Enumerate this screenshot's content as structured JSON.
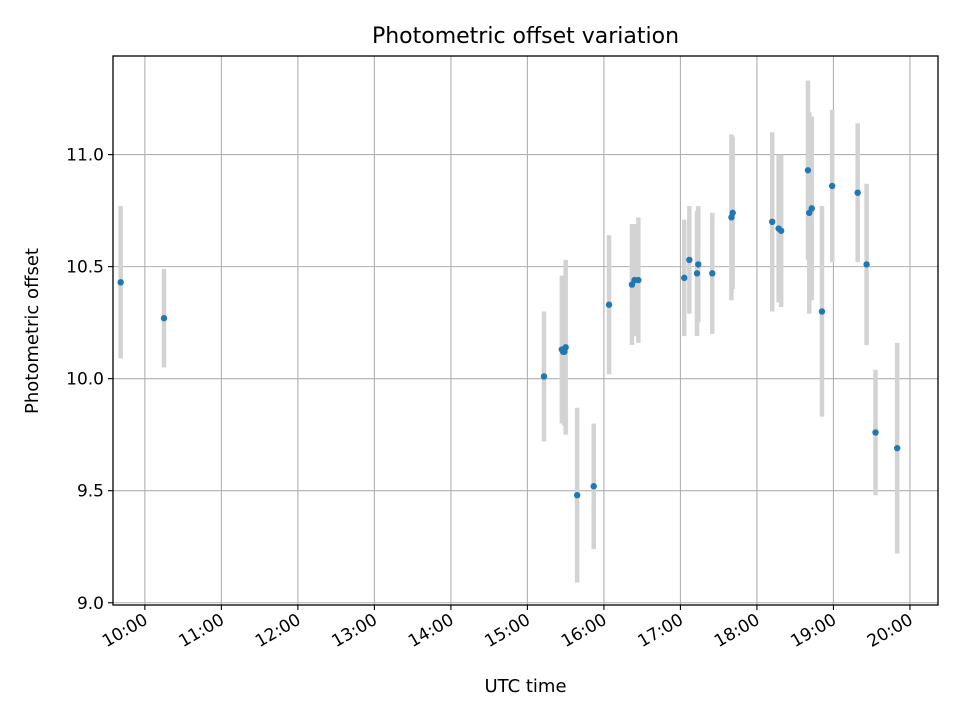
{
  "chart_data": {
    "type": "scatter",
    "title": "Photometric offset variation",
    "xlabel": "UTC time",
    "ylabel": "Photometric offset",
    "xlim": [
      "09:35",
      "20:22"
    ],
    "ylim": [
      8.99,
      11.44
    ],
    "x_ticks": [
      "10:00",
      "11:00",
      "12:00",
      "13:00",
      "14:00",
      "15:00",
      "16:00",
      "17:00",
      "18:00",
      "19:00",
      "20:00"
    ],
    "y_ticks": [
      "9.0",
      "9.5",
      "10.0",
      "10.5",
      "11.0"
    ],
    "y_tick_values": [
      9.0,
      9.5,
      10.0,
      10.5,
      11.0
    ],
    "grid": true,
    "colors": {
      "marker": "#1f77b4",
      "errorbar": "#d3d3d3",
      "grid": "#b0b0b0"
    },
    "points": [
      {
        "x": "09:41",
        "y": 10.43,
        "err": 0.34
      },
      {
        "x": "10:15",
        "y": 10.27,
        "err": 0.22
      },
      {
        "x": "15:13",
        "y": 10.01,
        "err": 0.29
      },
      {
        "x": "15:27",
        "y": 10.13,
        "err": 0.33
      },
      {
        "x": "15:28",
        "y": 10.12,
        "err": 0.32
      },
      {
        "x": "15:29",
        "y": 10.12,
        "err": 0.33
      },
      {
        "x": "15:30",
        "y": 10.14,
        "err": 0.39
      },
      {
        "x": "15:39",
        "y": 9.48,
        "err": 0.39
      },
      {
        "x": "15:52",
        "y": 9.52,
        "err": 0.28
      },
      {
        "x": "16:04",
        "y": 10.33,
        "err": 0.31
      },
      {
        "x": "16:22",
        "y": 10.42,
        "err": 0.27
      },
      {
        "x": "16:24",
        "y": 10.44,
        "err": 0.25
      },
      {
        "x": "16:27",
        "y": 10.44,
        "err": 0.28
      },
      {
        "x": "17:03",
        "y": 10.45,
        "err": 0.26
      },
      {
        "x": "17:07",
        "y": 10.53,
        "err": 0.24
      },
      {
        "x": "17:13",
        "y": 10.47,
        "err": 0.28
      },
      {
        "x": "17:14",
        "y": 10.51,
        "err": 0.26
      },
      {
        "x": "17:25",
        "y": 10.47,
        "err": 0.27
      },
      {
        "x": "17:40",
        "y": 10.72,
        "err": 0.37
      },
      {
        "x": "17:41",
        "y": 10.74,
        "err": 0.34
      },
      {
        "x": "18:12",
        "y": 10.7,
        "err": 0.4
      },
      {
        "x": "18:17",
        "y": 10.67,
        "err": 0.33
      },
      {
        "x": "18:19",
        "y": 10.66,
        "err": 0.34
      },
      {
        "x": "18:40",
        "y": 10.93,
        "err": 0.4
      },
      {
        "x": "18:41",
        "y": 10.74,
        "err": 0.45
      },
      {
        "x": "18:43",
        "y": 10.76,
        "err": 0.41
      },
      {
        "x": "18:51",
        "y": 10.3,
        "err": 0.47
      },
      {
        "x": "18:59",
        "y": 10.86,
        "err": 0.34
      },
      {
        "x": "19:19",
        "y": 10.83,
        "err": 0.31
      },
      {
        "x": "19:26",
        "y": 10.51,
        "err": 0.36
      },
      {
        "x": "19:33",
        "y": 9.76,
        "err": 0.28
      },
      {
        "x": "19:50",
        "y": 9.69,
        "err": 0.47
      }
    ]
  }
}
